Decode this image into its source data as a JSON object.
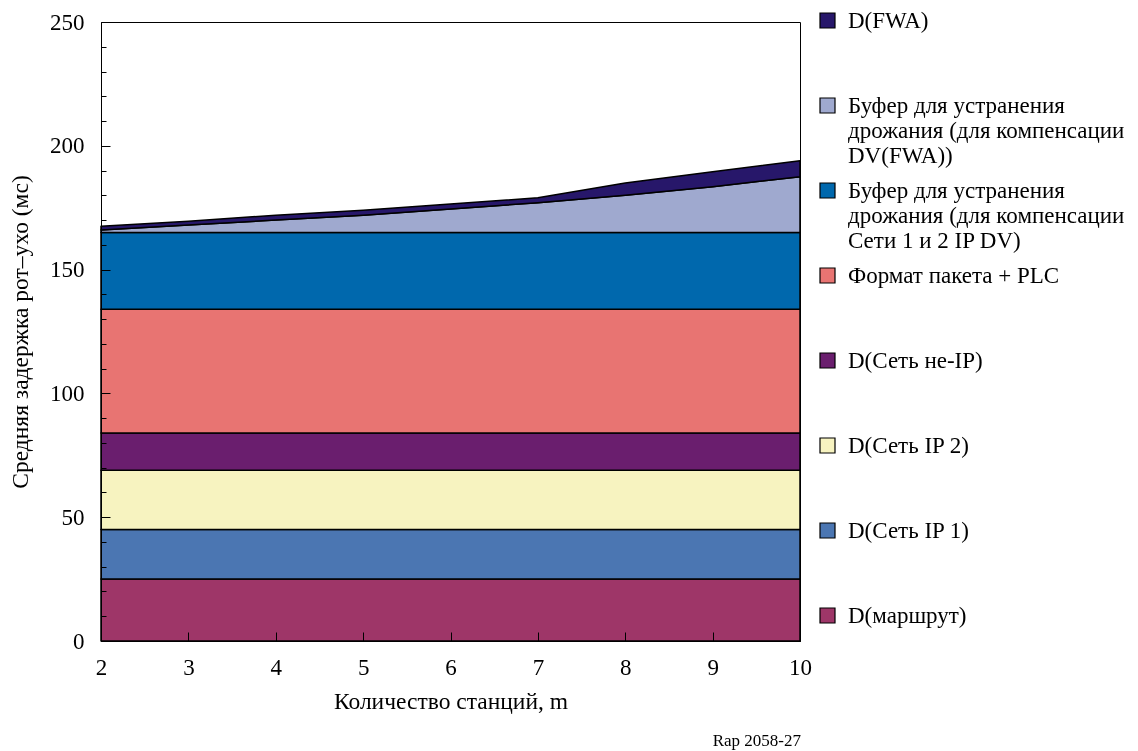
{
  "chart_data": {
    "type": "area",
    "xlabel": "Количество станций, m",
    "ylabel": "Средняя задержка рот–ухо (мс)",
    "annotations": [
      "Rap 2058-27"
    ],
    "x": [
      2,
      3,
      4,
      5,
      6,
      7,
      8,
      9,
      10
    ],
    "stacked": true,
    "legend": "right",
    "series": [
      {
        "name": "D(маршрут)",
        "color": "#9e3668",
        "values": [
          25,
          25,
          25,
          25,
          25,
          25,
          25,
          25,
          25
        ]
      },
      {
        "name": "D(Сеть IP 1)",
        "color": "#4b76b2",
        "values": [
          20,
          20,
          20,
          20,
          20,
          20,
          20,
          20,
          20
        ]
      },
      {
        "name": "D(Сеть IP 2)",
        "color": "#f7f3c0",
        "values": [
          24,
          24,
          24,
          24,
          24,
          24,
          24,
          24,
          24
        ]
      },
      {
        "name": "D(Сеть не-IP)",
        "color": "#6a1e6e",
        "values": [
          15,
          15,
          15,
          15,
          15,
          15,
          15,
          15,
          15
        ]
      },
      {
        "name": "Формат пакета + PLC",
        "color": "#e87472",
        "values": [
          50,
          50,
          50,
          50,
          50,
          50,
          50,
          50,
          50
        ]
      },
      {
        "name": "Буфер для устранения дрожания (для компенсации Сети 1 и 2 IP DV)",
        "color": "#0068ad",
        "values": [
          31,
          31,
          31,
          31,
          31,
          31,
          31,
          31,
          31
        ]
      },
      {
        "name": "Буфер для устранения дрожания (для компенсации DV(FWA))",
        "color": "#9fa9cf",
        "values": [
          1,
          3,
          5,
          7,
          9.5,
          12,
          15,
          18.5,
          22.5
        ]
      },
      {
        "name": "D(FWA)",
        "color": "#27176a",
        "values": [
          1.5,
          1.5,
          2,
          2,
          2,
          2,
          5,
          6,
          6.5
        ]
      }
    ],
    "xlim": [
      2,
      10
    ],
    "ylim": [
      0,
      250
    ],
    "xticks": [
      2,
      3,
      4,
      5,
      6,
      7,
      8,
      9,
      10
    ],
    "yticks": [
      0,
      {
        "value": 10,
        "label": null
      },
      {
        "value": 20,
        "label": null
      },
      {
        "value": 30,
        "label": null
      },
      {
        "value": 40,
        "label": null
      },
      50,
      {
        "value": 60,
        "label": null
      },
      {
        "value": 70,
        "label": null
      },
      {
        "value": 80,
        "label": null
      },
      {
        "value": 90,
        "label": null
      },
      100,
      {
        "value": 110,
        "label": null
      },
      {
        "value": 120,
        "label": null
      },
      {
        "value": 130,
        "label": null
      },
      {
        "value": 140,
        "label": null
      },
      150,
      {
        "value": 160,
        "label": null
      },
      {
        "value": 170,
        "label": null
      },
      {
        "value": 180,
        "label": null
      },
      {
        "value": 190,
        "label": null
      },
      200,
      {
        "value": 210,
        "label": null
      },
      {
        "value": 220,
        "label": null
      },
      {
        "value": 230,
        "label": null
      },
      {
        "value": 240,
        "label": null
      },
      250
    ]
  }
}
